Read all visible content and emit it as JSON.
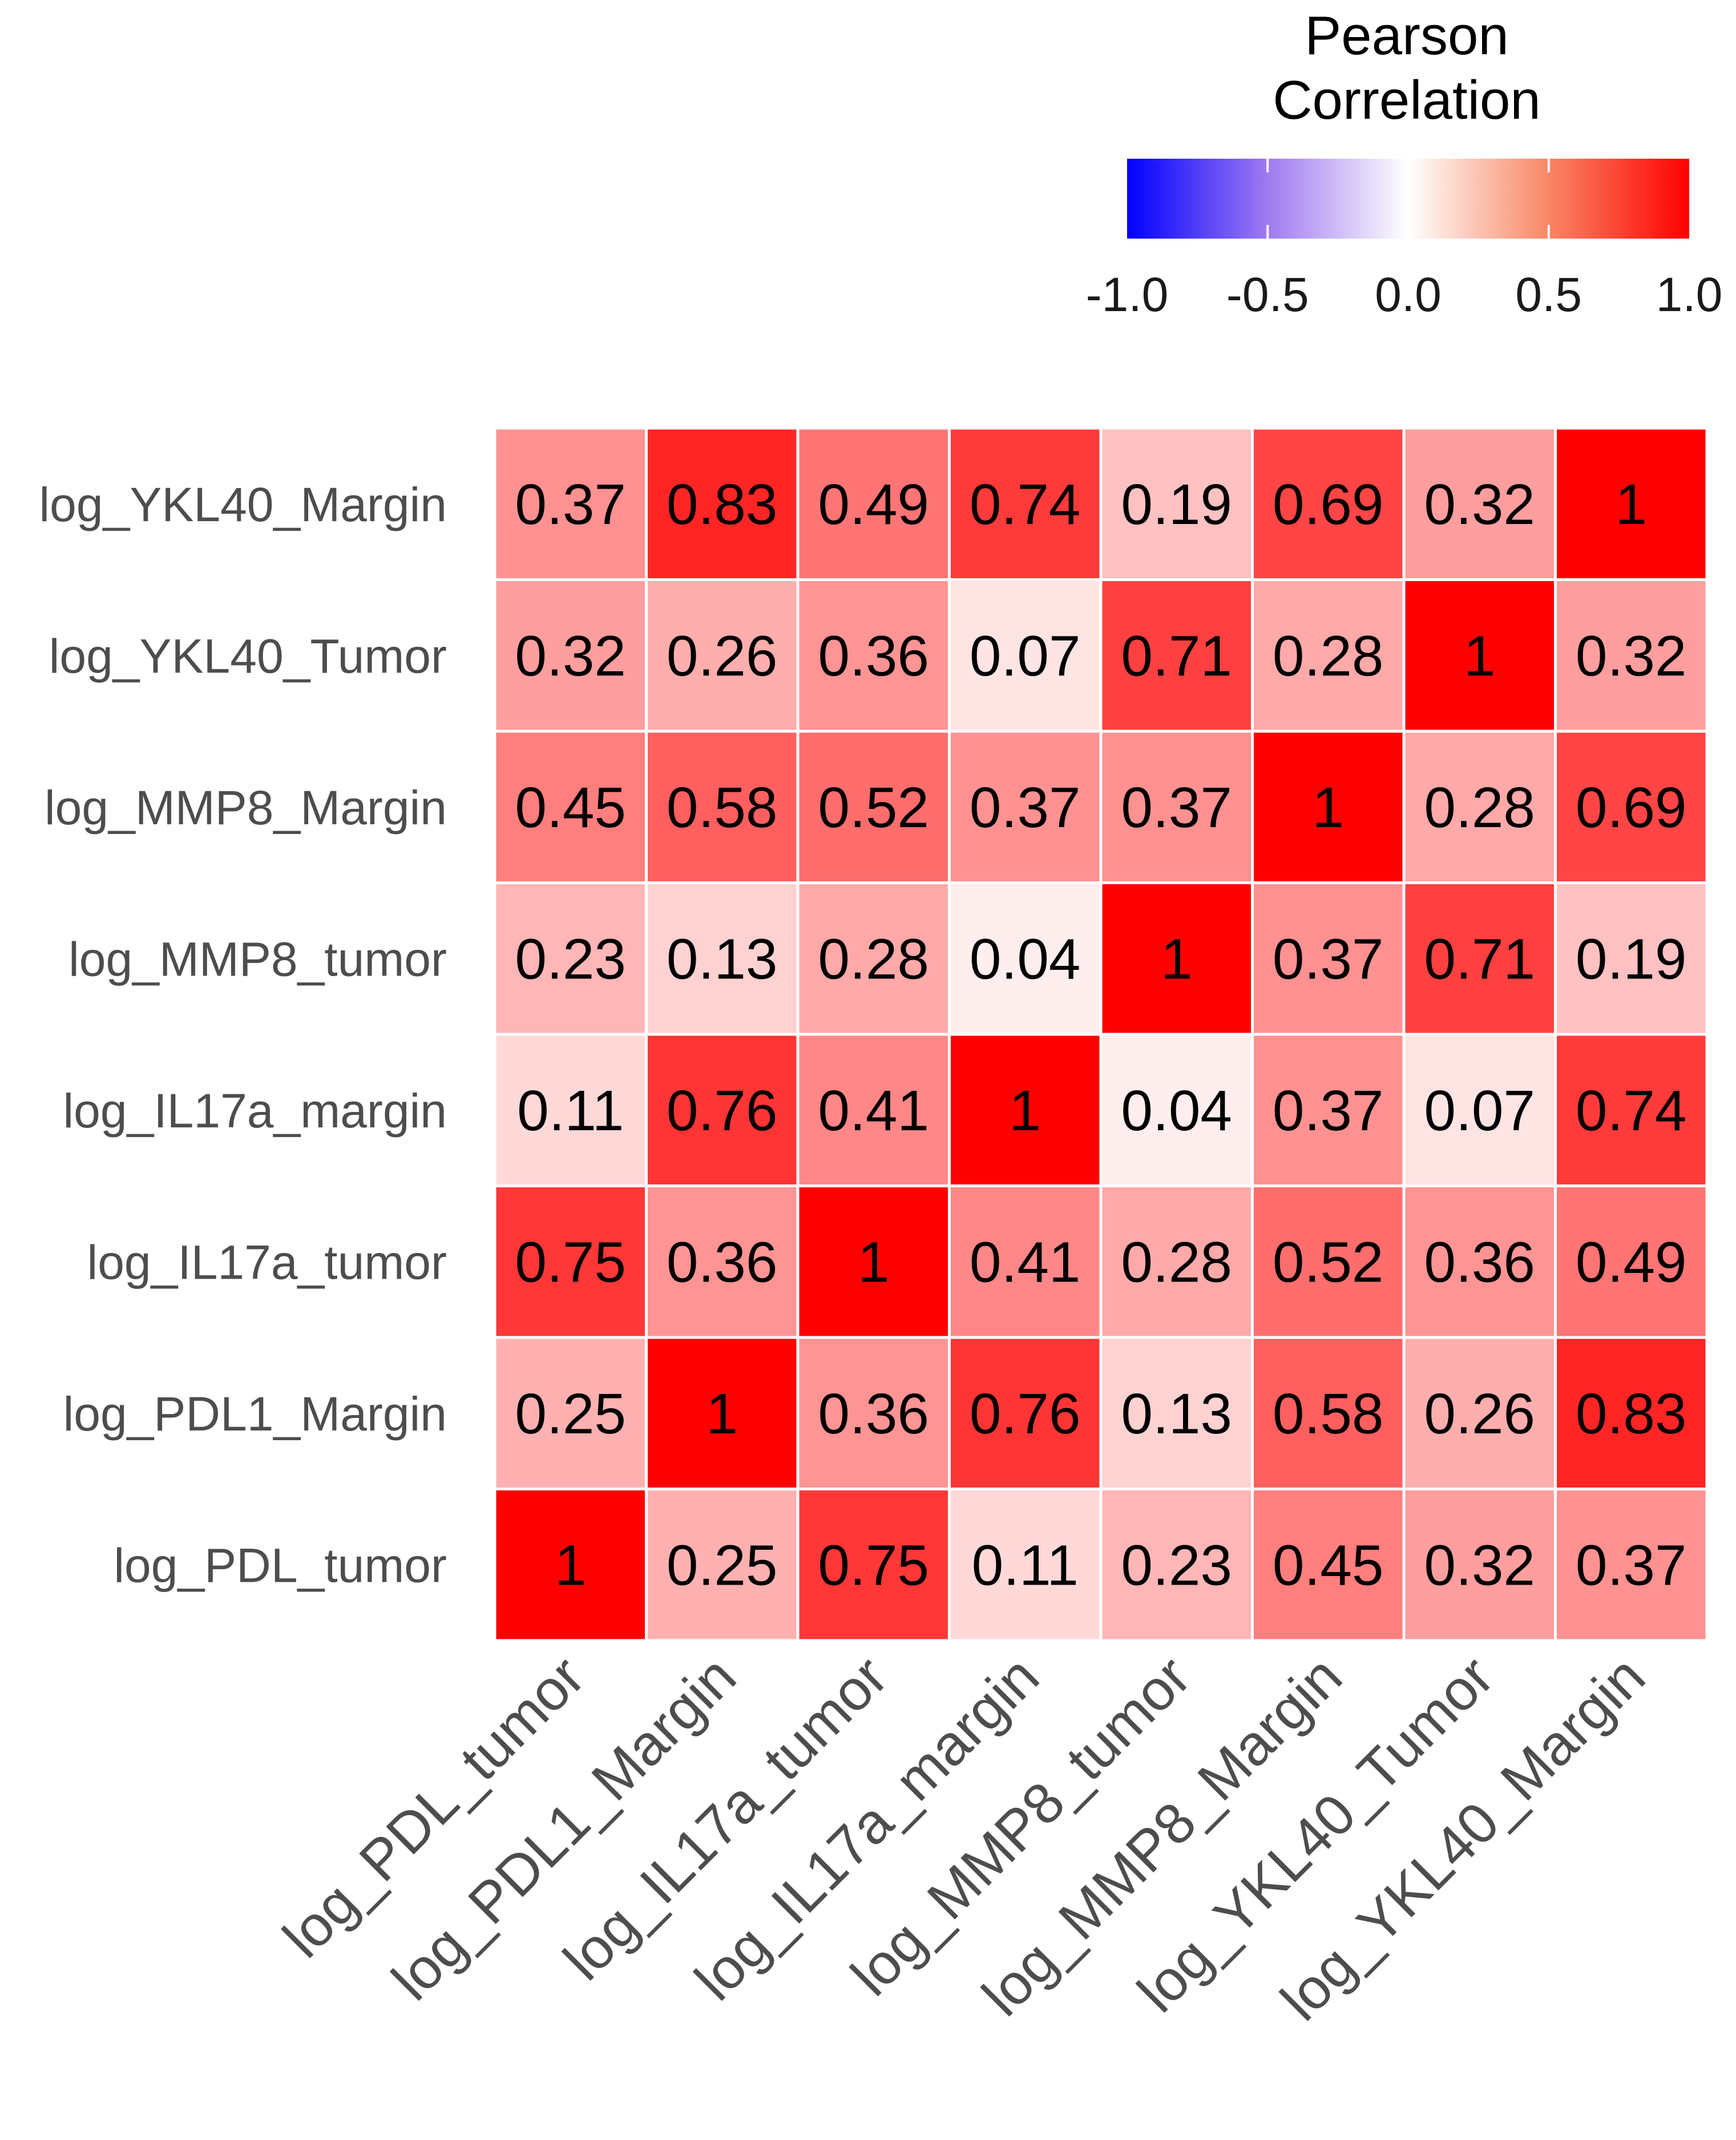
{
  "chart_data": {
    "type": "heatmap",
    "title": "",
    "legend": {
      "title_lines": [
        "Pearson",
        "Correlation"
      ],
      "ticks": [
        "-1.0",
        "-0.5",
        "0.0",
        "0.5",
        "1.0"
      ],
      "range": [
        -1,
        1
      ],
      "low_color": "#0000ff",
      "mid_color": "#ffffff",
      "high_color": "#ff0000",
      "placement": "top-right"
    },
    "columns": [
      "log_PDL_tumor",
      "log_PDL1_Margin",
      "log_IL17a_tumor",
      "log_IL17a_margin",
      "log_MMP8_tumor",
      "log_MMP8_Margin",
      "log_YKL40_Tumor",
      "log_YKL40_Margin"
    ],
    "rows": [
      "log_YKL40_Margin",
      "log_YKL40_Tumor",
      "log_MMP8_Margin",
      "log_MMP8_tumor",
      "log_IL17a_margin",
      "log_IL17a_tumor",
      "log_PDL1_Margin",
      "log_PDL_tumor"
    ],
    "values": [
      [
        "0.37",
        "0.83",
        "0.49",
        "0.74",
        "0.19",
        "0.69",
        "0.32",
        "1"
      ],
      [
        "0.32",
        "0.26",
        "0.36",
        "0.07",
        "0.71",
        "0.28",
        "1",
        "0.32"
      ],
      [
        "0.45",
        "0.58",
        "0.52",
        "0.37",
        "0.37",
        "1",
        "0.28",
        "0.69"
      ],
      [
        "0.23",
        "0.13",
        "0.28",
        "0.04",
        "1",
        "0.37",
        "0.71",
        "0.19"
      ],
      [
        "0.11",
        "0.76",
        "0.41",
        "1",
        "0.04",
        "0.37",
        "0.07",
        "0.74"
      ],
      [
        "0.75",
        "0.36",
        "1",
        "0.41",
        "0.28",
        "0.52",
        "0.36",
        "0.49"
      ],
      [
        "0.25",
        "1",
        "0.36",
        "0.76",
        "0.13",
        "0.58",
        "0.26",
        "0.83"
      ],
      [
        "1",
        "0.25",
        "0.75",
        "0.11",
        "0.23",
        "0.45",
        "0.32",
        "0.37"
      ]
    ],
    "grid": true
  }
}
